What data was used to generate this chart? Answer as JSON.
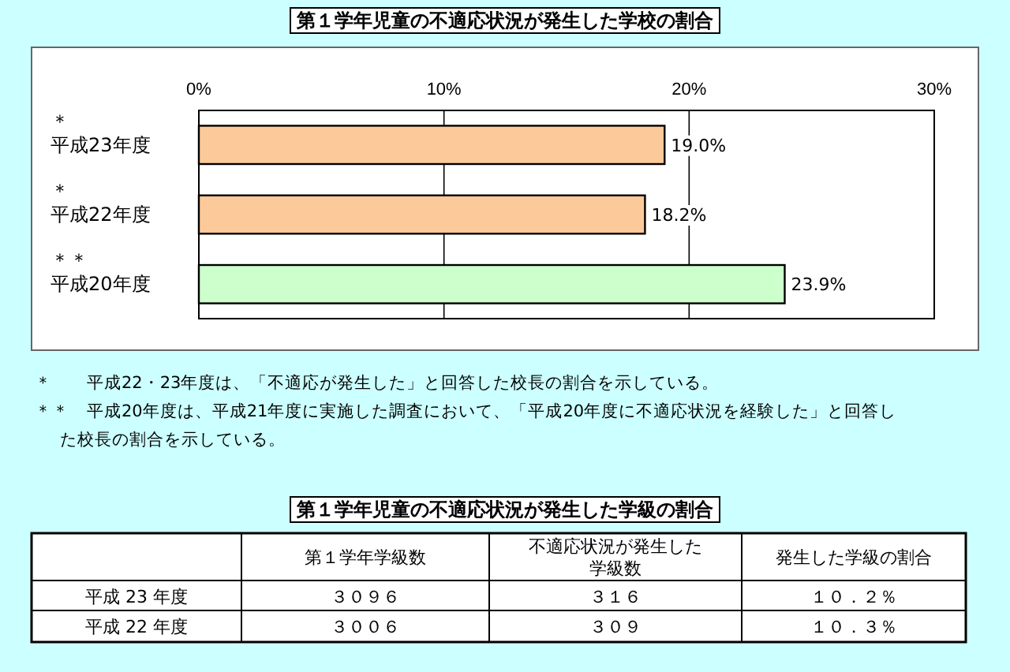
{
  "chart_data": [
    {
      "type": "bar",
      "orientation": "horizontal",
      "title": "第１学年児童の不適応状況が発生した学校の割合",
      "categories": [
        "＊平成23年度",
        "＊平成22年度",
        "＊＊平成20年度"
      ],
      "values": [
        19.0,
        18.2,
        23.9
      ],
      "colors": [
        "#fcc99a",
        "#fcc99a",
        "#ccffcc"
      ],
      "value_labels": [
        "19.0%",
        "18.2%",
        "23.9%"
      ],
      "xlim": [
        0,
        30
      ],
      "xticks": [
        {
          "value": 0,
          "label": "0%"
        },
        {
          "value": 10,
          "label": "10%"
        },
        {
          "value": 20,
          "label": "20%"
        },
        {
          "value": 30,
          "label": "30%"
        }
      ],
      "grid": "x",
      "annotations": [
        "＊　　平成22・23年度は、「不適応が発生した」と回答した校長の割合を示している。",
        "＊＊　平成20年度は、平成21年度に実施した調査において、「平成20年度に不適応状況を経験した」と回答した校長の割合を示している。"
      ]
    },
    {
      "type": "other",
      "title": "第１学年児童の不適応状況が発生した学級の割合",
      "categories": [
        "平成 23 年度",
        "平成 22 年度"
      ],
      "series": [
        {
          "name": "第１学年学級数",
          "values": [
            3096,
            3006
          ],
          "value_labels": [
            "３０９６",
            "３００６"
          ]
        },
        {
          "name": "不適応状況が発生した学級数",
          "values": [
            316,
            309
          ],
          "value_labels": [
            "３１６",
            "３０９"
          ]
        },
        {
          "name": "発生した学級の割合",
          "values": [
            10.2,
            10.3
          ],
          "value_labels": [
            "１０．２％",
            "１０．３％"
          ]
        }
      ]
    }
  ]
}
